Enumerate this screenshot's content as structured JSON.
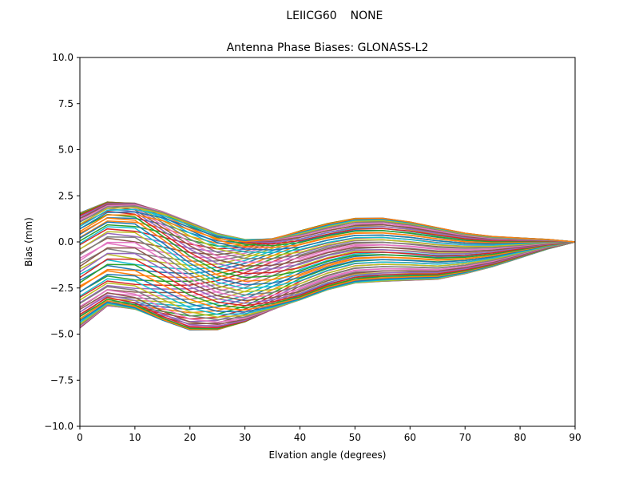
{
  "figure": {
    "suptitle_left": "LEIICG60",
    "suptitle_right": "NONE",
    "title": "Antenna Phase Biases: GLONASS-L2",
    "xlabel": "Elvation angle (degrees)",
    "ylabel": "Bias (mm)",
    "xticks": [
      "0",
      "10",
      "20",
      "30",
      "40",
      "50",
      "60",
      "70",
      "80",
      "90"
    ],
    "yticks": [
      "10.0",
      "7.5",
      "5.0",
      "2.5",
      "0.0",
      "−2.5",
      "−5.0",
      "−7.5",
      "−10.0"
    ]
  },
  "chart_data": {
    "type": "line",
    "title": "Antenna Phase Biases: GLONASS-L2",
    "suptitle": "LEIICG60        NONE",
    "xlabel": "Elvation angle (degrees)",
    "ylabel": "Bias (mm)",
    "xlim": [
      0,
      90
    ],
    "ylim": [
      -10,
      10
    ],
    "grid": false,
    "legend": "none",
    "x": [
      0,
      5,
      10,
      15,
      20,
      25,
      30,
      35,
      40,
      45,
      50,
      55,
      60,
      65,
      70,
      75,
      80,
      85,
      90
    ],
    "envelope_top": [
      1.8,
      2.5,
      2.45,
      2.0,
      1.4,
      0.8,
      0.5,
      0.5,
      0.75,
      1.1,
      1.35,
      1.35,
      1.15,
      0.85,
      0.55,
      0.35,
      0.25,
      0.15,
      0.0
    ],
    "envelope_bottom": [
      -4.9,
      -3.8,
      -4.0,
      -4.6,
      -5.1,
      -5.1,
      -4.7,
      -4.0,
      -3.3,
      -2.7,
      -2.3,
      -2.2,
      -2.15,
      -2.1,
      -1.8,
      -1.4,
      -0.9,
      -0.4,
      0.0
    ],
    "series_count": 72,
    "series_note": "Many azimuth-dependent PCV curves (one per azimuth), all converging to 0.0 at 90 degrees elevation",
    "colors": [
      "#1f77b4",
      "#ff7f0e",
      "#2ca02c",
      "#d62728",
      "#9467bd",
      "#8c564b",
      "#e377c2",
      "#7f7f7f",
      "#bcbd22",
      "#17becf"
    ]
  }
}
